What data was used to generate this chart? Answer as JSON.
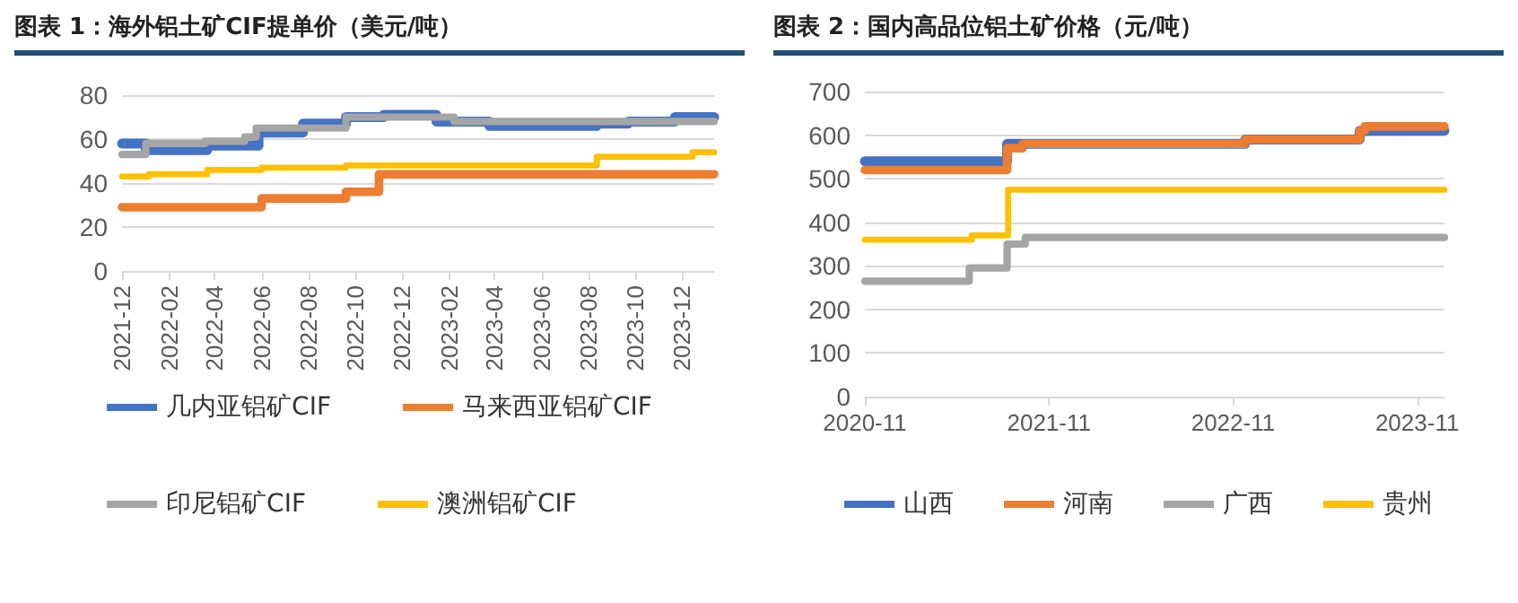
{
  "chart_data": [
    {
      "type": "step",
      "title": "图表 1：海外铝土矿CIF提单价（美元/吨）",
      "xlim": [
        "2021-12",
        "2024-01-12"
      ],
      "xticks": [
        "2021-12",
        "2022-02",
        "2022-04",
        "2022-06",
        "2022-08",
        "2022-10",
        "2022-12",
        "2023-02",
        "2023-04",
        "2023-06",
        "2023-08",
        "2023-10",
        "2023-12"
      ],
      "ylim": [
        0,
        80
      ],
      "yticks": [
        0,
        20,
        40,
        60,
        80
      ],
      "grid": "y",
      "legend": "bottom",
      "line_style": "solid",
      "series": [
        {
          "name": "几内亚铝矿CIF",
          "color": "#4472c4",
          "x": [
            "2021-12",
            "2022-01-01",
            "2022-03-22",
            "2022-05-28",
            "2022-07-25",
            "2022-09-19",
            "2022-11-07",
            "2023-01-15",
            "2023-03-25",
            "2023-08-12",
            "2023-09-22",
            "2023-11-22",
            "2024-01-12"
          ],
          "values": [
            58,
            55,
            57,
            63,
            67,
            70,
            71,
            68,
            66,
            67,
            68,
            70,
            70
          ]
        },
        {
          "name": "马来西亚铝矿CIF",
          "color": "#ed7d31",
          "x": [
            "2021-12",
            "2022-06-01",
            "2022-09-19",
            "2022-11-01",
            "2024-01-12"
          ],
          "values": [
            29,
            33,
            36,
            44,
            44
          ]
        },
        {
          "name": "印尼铝矿CIF",
          "color": "#a5a5a5",
          "x": [
            "2021-12",
            "2022-01-01",
            "2022-03-19",
            "2022-05-10",
            "2022-05-25",
            "2022-09-19",
            "2023-02-07",
            "2024-01-12"
          ],
          "values": [
            53,
            58,
            59,
            61,
            65,
            70,
            68,
            68
          ]
        },
        {
          "name": "澳洲铝矿CIF",
          "color": "#ffc000",
          "x": [
            "2021-12",
            "2022-01-05",
            "2022-03-22",
            "2022-06-01",
            "2022-09-19",
            "2023-08-12",
            "2023-12-15",
            "2024-01-12"
          ],
          "values": [
            43,
            44,
            46,
            47,
            48,
            52,
            54,
            54
          ]
        }
      ]
    },
    {
      "type": "step",
      "title": "图表 2：国内高品位铝土矿价格（元/吨）",
      "xlim": [
        "2020-11",
        "2023-12-25"
      ],
      "xticks": [
        "2020-11",
        "2021-11",
        "2022-11",
        "2023-11"
      ],
      "ylim": [
        0,
        700
      ],
      "yticks": [
        0,
        100,
        200,
        300,
        400,
        500,
        600,
        700
      ],
      "grid": "y",
      "legend": "bottom",
      "line_style": "solid",
      "series": [
        {
          "name": "山西",
          "color": "#4472c4",
          "x": [
            "2020-11",
            "2021-08-10",
            "2022-11-25",
            "2023-07-10",
            "2023-12-25"
          ],
          "values": [
            540,
            580,
            590,
            610,
            610
          ]
        },
        {
          "name": "河南",
          "color": "#ed7d31",
          "x": [
            "2020-11",
            "2021-08-10",
            "2021-09-10",
            "2022-11-25",
            "2023-07-10",
            "2023-07-20",
            "2023-12-25"
          ],
          "values": [
            520,
            570,
            580,
            590,
            610,
            620,
            620
          ]
        },
        {
          "name": "广西",
          "color": "#a5a5a5",
          "x": [
            "2020-11",
            "2021-05-27",
            "2021-08-10",
            "2021-09-15",
            "2023-12-25"
          ],
          "values": [
            265,
            295,
            350,
            365,
            365
          ]
        },
        {
          "name": "贵州",
          "color": "#ffc000",
          "x": [
            "2020-11",
            "2021-06-01",
            "2021-08-12",
            "2023-12-25"
          ],
          "values": [
            360,
            370,
            475,
            475
          ]
        }
      ]
    }
  ]
}
